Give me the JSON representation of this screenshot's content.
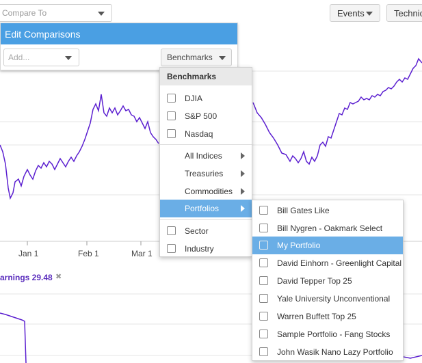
{
  "compare": {
    "placeholder": "Compare To"
  },
  "toolbar": {
    "events_label": "Events",
    "technicals_label": "Technica"
  },
  "edit_comparisons": {
    "title": "Edit Comparisons",
    "add_placeholder": "Add...",
    "benchmarks_button": "Benchmarks"
  },
  "benchmarks_menu": {
    "header": "Benchmarks",
    "checkbox_items": [
      "DJIA",
      "S&P 500",
      "Nasdaq"
    ],
    "submenu_items": [
      "All Indices",
      "Treasuries",
      "Commodities",
      "Portfolios"
    ],
    "active_item": "Portfolios",
    "bottom_items": [
      "Sector",
      "Industry"
    ]
  },
  "portfolios_menu": {
    "items": [
      "Bill Gates Like",
      "Bill Nygren - Oakmark Select",
      "My Portfolio",
      "David Einhorn - Greenlight Capital",
      "David Tepper Top 25",
      "Yale University Unconventional",
      "Warren Buffett Top 25",
      "Sample Portfolio - Fang Stocks",
      "John Wasik Nano Lazy Portfolio"
    ],
    "highlighted": "My Portfolio"
  },
  "x_axis": {
    "labels": [
      "Jan 1",
      "Feb 1",
      "Mar 1"
    ]
  },
  "earnings": {
    "label": "arnings 29.48",
    "close": "✖"
  },
  "colors": {
    "series": "#5b1fd0",
    "accent": "#4a9fe3",
    "highlight": "#6aaee6",
    "grid": "#e6e6e6"
  }
}
